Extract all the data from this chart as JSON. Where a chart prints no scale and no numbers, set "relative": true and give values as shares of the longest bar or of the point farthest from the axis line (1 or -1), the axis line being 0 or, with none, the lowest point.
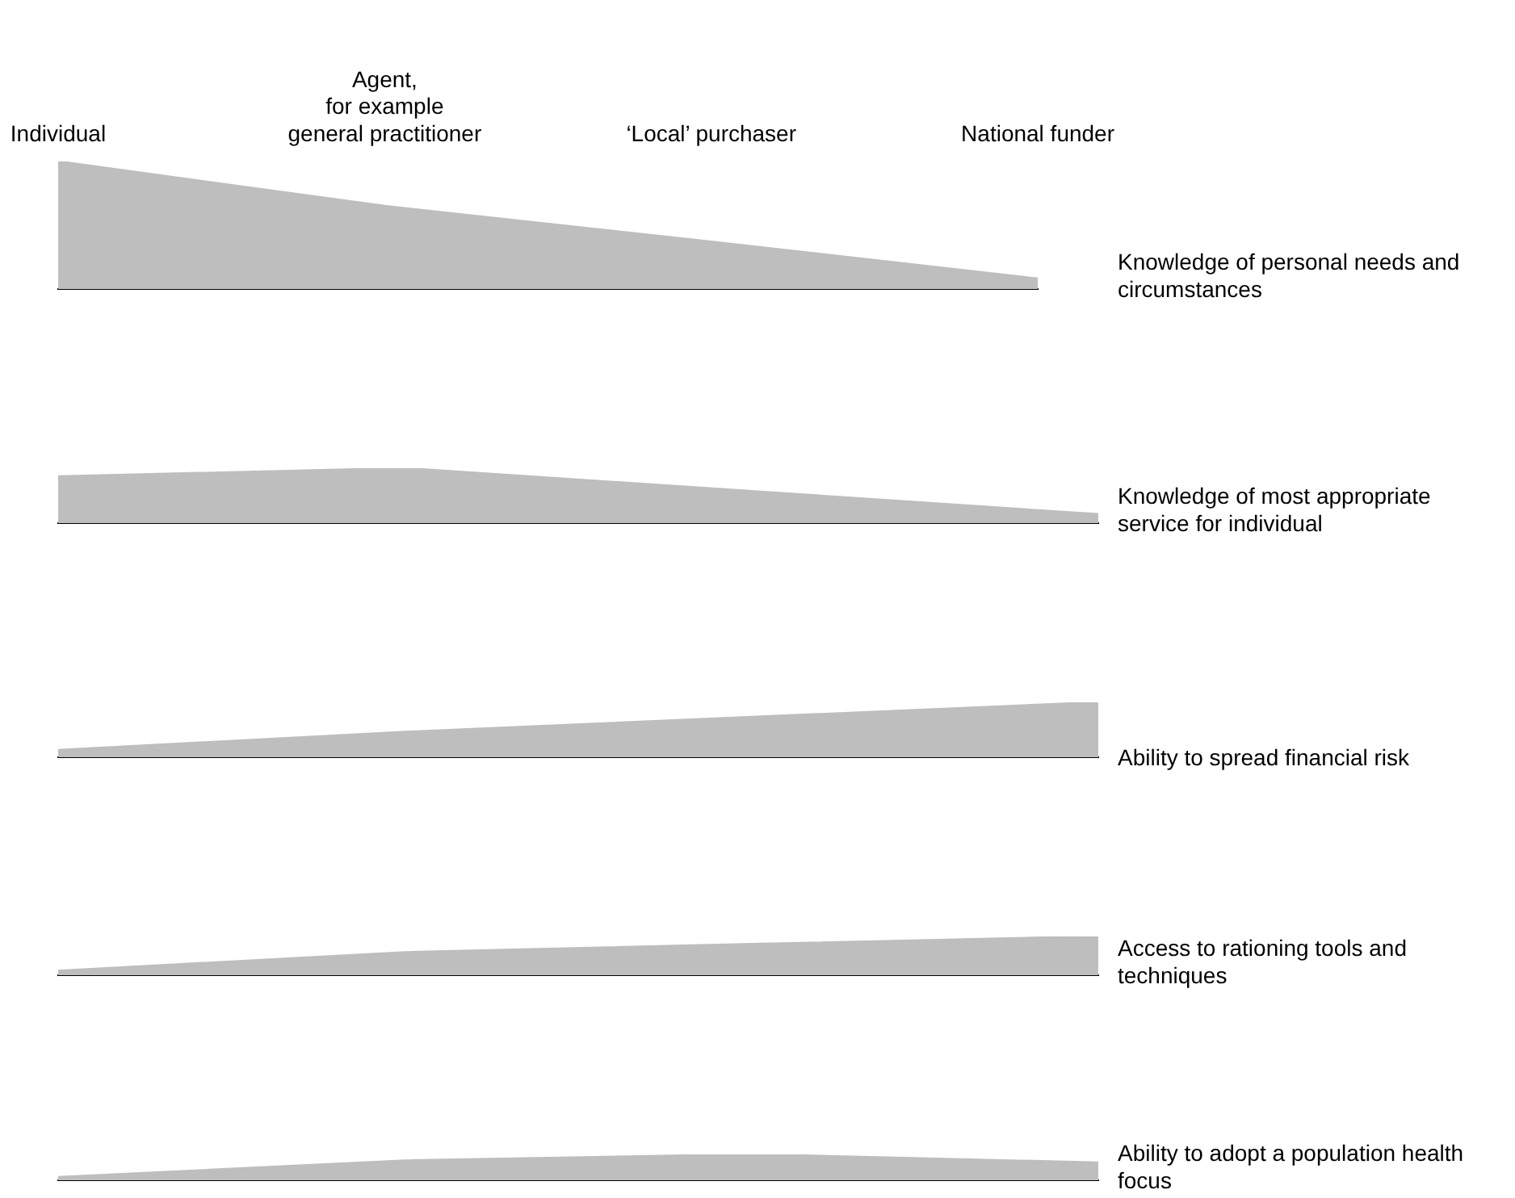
{
  "chart_data": [
    {
      "type": "area",
      "categories": [
        "Individual",
        "Agent,\nfor example\ngeneral practitioner",
        "‘Local’ purchaser",
        "National funder"
      ],
      "relative": true,
      "tick_labels": "x",
      "annotations": [
        "Knowledge of personal needs and circumstances"
      ],
      "series": [
        {
          "color": "#bebebe",
          "values": [
            1,
            0.65,
            0.37,
            0.08
          ]
        }
      ]
    },
    {
      "type": "area",
      "categories": [
        null,
        null,
        null,
        null
      ],
      "relative": true,
      "tick_labels": false,
      "annotations": [
        "Knowledge of most appropriate service for individual"
      ],
      "series": [
        {
          "color": "#bebebe",
          "values": [
            0.85,
            1,
            0.58,
            0.16
          ]
        }
      ]
    },
    {
      "type": "area",
      "categories": [
        null,
        null,
        null,
        null
      ],
      "relative": true,
      "tick_labels": false,
      "annotations": [
        "Ability to spread financial risk"
      ],
      "series": [
        {
          "color": "#bebebe",
          "values": [
            0.13,
            0.46,
            0.73,
            1
          ]
        }
      ]
    },
    {
      "type": "area",
      "categories": [
        null,
        null,
        null,
        null
      ],
      "relative": true,
      "tick_labels": false,
      "annotations": [
        "Access to rationing tools and techniques"
      ],
      "series": [
        {
          "color": "#bebebe",
          "values": [
            0.11,
            0.59,
            0.8,
            1
          ]
        }
      ]
    },
    {
      "type": "area",
      "categories": [
        null,
        null,
        null,
        null
      ],
      "relative": true,
      "tick_labels": false,
      "annotations": [
        "Ability to adopt a population health focus"
      ],
      "series": [
        {
          "color": "#bebebe",
          "values": [
            0.12,
            0.76,
            1,
            0.68
          ]
        }
      ]
    }
  ]
}
